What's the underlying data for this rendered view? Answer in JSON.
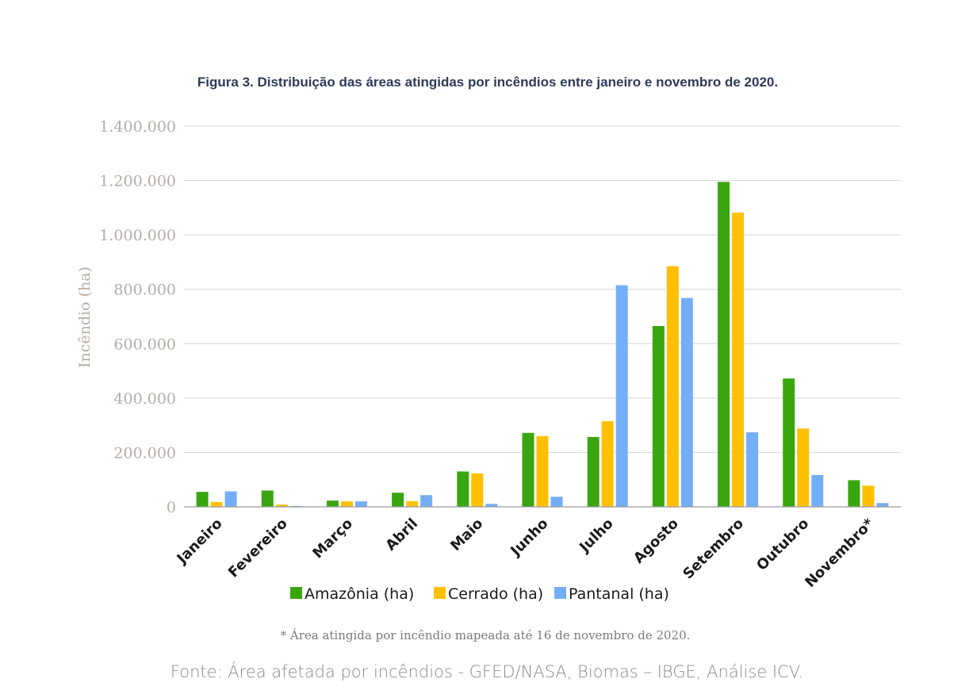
{
  "chart_data": {
    "type": "bar",
    "title": "Figura 3. Distribuição das áreas atingidas por incêndios entre janeiro e novembro de 2020.",
    "ylabel": "Incêndio (ha)",
    "xlabel": "",
    "ylim": [
      0,
      1400000
    ],
    "yticks": [
      0,
      200000,
      400000,
      600000,
      800000,
      1000000,
      1200000,
      1400000
    ],
    "ytick_labels": [
      "0",
      "200.000",
      "400.000",
      "600.000",
      "800.000",
      "1.000.000",
      "1.200.000",
      "1.400.000"
    ],
    "grid": true,
    "legend_position": "bottom",
    "categories": [
      "Janeiro",
      "Fevereiro",
      "Março",
      "Abril",
      "Maio",
      "Junho",
      "Julho",
      "Agosto",
      "Setembro",
      "Outubro",
      "Novembro*"
    ],
    "series": [
      {
        "name": "Amazônia (ha)",
        "color": "#3aa60f",
        "values": [
          55000,
          60000,
          23000,
          52000,
          130000,
          272000,
          257000,
          665000,
          1195000,
          472000,
          98000
        ]
      },
      {
        "name": "Cerrado (ha)",
        "color": "#ffc000",
        "values": [
          18000,
          8000,
          20000,
          21000,
          123000,
          260000,
          315000,
          885000,
          1082000,
          288000,
          78000
        ]
      },
      {
        "name": "Pantanal (ha)",
        "color": "#74aef8",
        "values": [
          57000,
          3000,
          20000,
          43000,
          11000,
          37000,
          815000,
          768000,
          274000,
          117000,
          14000
        ]
      }
    ],
    "footnote": "* Área atingida por incêndio mapeada até 16 de novembro de 2020.",
    "source": "Fonte: Área afetada por incêndios - GFED/NASA, Biomas – IBGE, Análise ICV."
  }
}
